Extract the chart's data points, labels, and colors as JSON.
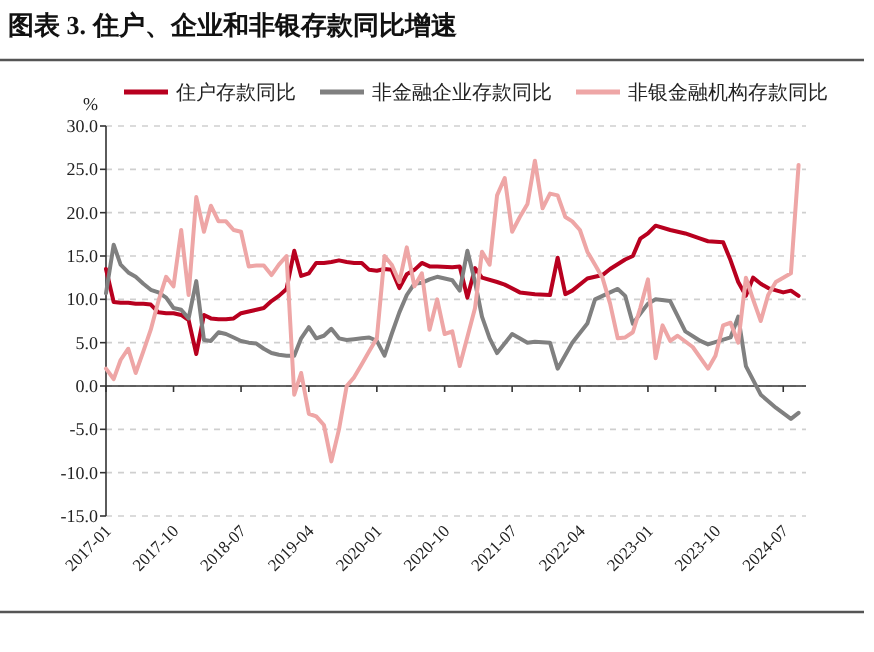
{
  "chart_data": {
    "type": "line",
    "title": "图表 3. 住户、企业和非银存款同比增速",
    "ylabel": "%",
    "xlim": [
      "2017-01",
      "2024-10"
    ],
    "xticks": [
      "2017-01",
      "2017-10",
      "2018-07",
      "2019-04",
      "2020-01",
      "2020-10",
      "2021-07",
      "2022-04",
      "2023-01",
      "2023-10",
      "2024-07"
    ],
    "ylim": [
      -15,
      30
    ],
    "yticks": [
      {
        "value": -15,
        "label": "-15.0"
      },
      {
        "value": -10,
        "label": "-10.0"
      },
      {
        "value": -5,
        "label": "-5.0"
      },
      {
        "value": 0,
        "label": "0.0"
      },
      {
        "value": 5,
        "label": "5.0"
      },
      {
        "value": 10,
        "label": "10.0"
      },
      {
        "value": 15,
        "label": "15.0"
      },
      {
        "value": 20,
        "label": "20.0"
      },
      {
        "value": 25,
        "label": "25.0"
      },
      {
        "value": 30,
        "label": "30.0"
      }
    ],
    "grid": "y",
    "legend": "top",
    "line_style": "solid",
    "marker": "none",
    "series": [
      {
        "name": "住户存款同比",
        "color": "#b8001f",
        "x": [
          "2017-01",
          "2017-02",
          "2017-03",
          "2017-04",
          "2017-05",
          "2017-06",
          "2017-07",
          "2017-08",
          "2017-09",
          "2017-10",
          "2017-11",
          "2017-12",
          "2018-01",
          "2018-02",
          "2018-03",
          "2018-04",
          "2018-05",
          "2018-06",
          "2018-07",
          "2018-08",
          "2018-09",
          "2018-10",
          "2018-11",
          "2018-12",
          "2019-01",
          "2019-02",
          "2019-03",
          "2019-04",
          "2019-05",
          "2019-06",
          "2019-07",
          "2019-08",
          "2019-09",
          "2019-10",
          "2019-11",
          "2019-12",
          "2020-01",
          "2020-02",
          "2020-03",
          "2020-04",
          "2020-05",
          "2020-06",
          "2020-07",
          "2020-08",
          "2020-09",
          "2020-11",
          "2020-12",
          "2021-01",
          "2021-02",
          "2021-03",
          "2021-05",
          "2021-06",
          "2021-08",
          "2021-10",
          "2021-12",
          "2022-01",
          "2022-02",
          "2022-03",
          "2022-05",
          "2022-07",
          "2022-08",
          "2022-10",
          "2022-11",
          "2022-12",
          "2023-01",
          "2023-02",
          "2023-04",
          "2023-06",
          "2023-08",
          "2023-09",
          "2023-11",
          "2023-12",
          "2024-01",
          "2024-02",
          "2024-03",
          "2024-04",
          "2024-05",
          "2024-07",
          "2024-08",
          "2024-09"
        ],
        "values": [
          13.5,
          9.7,
          9.6,
          9.6,
          9.5,
          9.5,
          9.4,
          8.5,
          8.4,
          8.4,
          8.2,
          7.6,
          3.7,
          8.2,
          7.8,
          7.7,
          7.7,
          7.8,
          8.4,
          8.6,
          8.8,
          9.0,
          9.8,
          10.4,
          11.2,
          15.6,
          12.7,
          13.0,
          14.2,
          14.2,
          14.3,
          14.5,
          14.3,
          14.2,
          14.2,
          13.4,
          13.3,
          13.5,
          13.4,
          11.3,
          12.9,
          13.4,
          14.2,
          13.8,
          13.8,
          13.7,
          13.8,
          10.2,
          13.6,
          12.5,
          12.0,
          11.7,
          10.8,
          10.6,
          10.5,
          14.8,
          10.6,
          11.0,
          12.4,
          12.8,
          13.5,
          14.6,
          15.0,
          17.0,
          17.6,
          18.5,
          18.0,
          17.6,
          17.0,
          16.7,
          16.6,
          14.5,
          12.0,
          10.4,
          12.5,
          11.8,
          11.3,
          10.8,
          11.0,
          10.4
        ]
      },
      {
        "name": "非金融企业存款同比",
        "color": "#808080",
        "x": [
          "2017-01",
          "2017-02",
          "2017-03",
          "2017-04",
          "2017-05",
          "2017-06",
          "2017-07",
          "2017-08",
          "2017-09",
          "2017-10",
          "2017-11",
          "2017-12",
          "2018-01",
          "2018-02",
          "2018-03",
          "2018-04",
          "2018-05",
          "2018-06",
          "2018-07",
          "2018-08",
          "2018-09",
          "2018-10",
          "2018-11",
          "2018-12",
          "2019-01",
          "2019-02",
          "2019-03",
          "2019-04",
          "2019-05",
          "2019-06",
          "2019-07",
          "2019-08",
          "2019-09",
          "2019-10",
          "2019-11",
          "2019-12",
          "2020-01",
          "2020-02",
          "2020-03",
          "2020-04",
          "2020-05",
          "2020-06",
          "2020-07",
          "2020-08",
          "2020-09",
          "2020-11",
          "2020-12",
          "2021-01",
          "2021-02",
          "2021-03",
          "2021-04",
          "2021-05",
          "2021-07",
          "2021-09",
          "2021-10",
          "2021-12",
          "2022-01",
          "2022-03",
          "2022-05",
          "2022-06",
          "2022-08",
          "2022-09",
          "2022-10",
          "2022-11",
          "2023-01",
          "2023-02",
          "2023-04",
          "2023-06",
          "2023-08",
          "2023-09",
          "2023-12",
          "2024-01",
          "2024-02",
          "2024-04",
          "2024-06",
          "2024-08",
          "2024-09"
        ],
        "values": [
          10.7,
          16.3,
          14.0,
          13.1,
          12.6,
          11.8,
          11.1,
          10.8,
          10.2,
          9.0,
          8.8,
          7.8,
          12.1,
          5.3,
          5.2,
          6.2,
          6.0,
          5.6,
          5.2,
          5.0,
          4.9,
          4.3,
          3.8,
          3.6,
          3.5,
          3.5,
          5.5,
          6.8,
          5.5,
          5.8,
          6.6,
          5.5,
          5.3,
          5.4,
          5.5,
          5.6,
          5.2,
          3.5,
          6.0,
          8.5,
          10.5,
          11.8,
          11.9,
          12.3,
          12.6,
          12.2,
          11.0,
          15.6,
          12.0,
          8.0,
          5.5,
          3.8,
          6.0,
          5.0,
          5.1,
          5.0,
          2.0,
          5.0,
          7.2,
          10.0,
          10.8,
          11.2,
          10.4,
          7.2,
          9.5,
          10.0,
          9.8,
          6.3,
          5.2,
          4.8,
          5.6,
          8.0,
          2.3,
          -1.0,
          -2.5,
          -3.8,
          -3.1
        ]
      },
      {
        "name": "非银金融机构存款同比",
        "color": "#eea6a6",
        "x": [
          "2017-01",
          "2017-02",
          "2017-03",
          "2017-04",
          "2017-05",
          "2017-06",
          "2017-07",
          "2017-08",
          "2017-09",
          "2017-10",
          "2017-11",
          "2017-12",
          "2018-01",
          "2018-02",
          "2018-03",
          "2018-04",
          "2018-05",
          "2018-06",
          "2018-07",
          "2018-08",
          "2018-09",
          "2018-10",
          "2018-11",
          "2018-12",
          "2019-01",
          "2019-02",
          "2019-03",
          "2019-04",
          "2019-05",
          "2019-06",
          "2019-07",
          "2019-08",
          "2019-09",
          "2019-10",
          "2019-11",
          "2019-12",
          "2020-01",
          "2020-02",
          "2020-03",
          "2020-04",
          "2020-05",
          "2020-06",
          "2020-07",
          "2020-08",
          "2020-09",
          "2020-10",
          "2020-11",
          "2020-12",
          "2021-02",
          "2021-03",
          "2021-04",
          "2021-05",
          "2021-06",
          "2021-07",
          "2021-08",
          "2021-09",
          "2021-10",
          "2021-11",
          "2021-12",
          "2022-01",
          "2022-02",
          "2022-03",
          "2022-04",
          "2022-05",
          "2022-06",
          "2022-07",
          "2022-08",
          "2022-09",
          "2022-10",
          "2022-11",
          "2022-12",
          "2023-01",
          "2023-02",
          "2023-03",
          "2023-04",
          "2023-05",
          "2023-07",
          "2023-09",
          "2023-10",
          "2023-11",
          "2023-12",
          "2024-01",
          "2024-02",
          "2024-03",
          "2024-04",
          "2024-05",
          "2024-06",
          "2024-07",
          "2024-08",
          "2024-09"
        ],
        "values": [
          2.0,
          0.8,
          3.0,
          4.3,
          1.5,
          4.0,
          6.5,
          9.8,
          12.6,
          11.5,
          18.0,
          10.5,
          21.8,
          17.8,
          20.8,
          19.0,
          19.0,
          18.0,
          17.8,
          13.8,
          13.9,
          13.9,
          12.8,
          14.0,
          15.0,
          -1.0,
          1.5,
          -3.2,
          -3.5,
          -4.5,
          -8.7,
          -5.0,
          0.0,
          1.0,
          2.5,
          4.0,
          5.5,
          15.0,
          14.0,
          12.0,
          16.0,
          11.5,
          13.0,
          6.5,
          10.0,
          6.0,
          6.3,
          2.3,
          9.0,
          15.5,
          14.0,
          22.0,
          24.0,
          17.8,
          19.5,
          21.0,
          26.0,
          20.5,
          22.2,
          22.0,
          19.5,
          19.0,
          18.0,
          15.5,
          14.0,
          12.5,
          9.5,
          5.5,
          5.6,
          6.2,
          9.0,
          12.3,
          3.2,
          7.0,
          5.2,
          5.8,
          4.5,
          2.0,
          3.5,
          7.0,
          7.3,
          5.0,
          12.5,
          10.0,
          7.5,
          10.5,
          12.0,
          12.5,
          13.0,
          25.5
        ]
      }
    ]
  }
}
